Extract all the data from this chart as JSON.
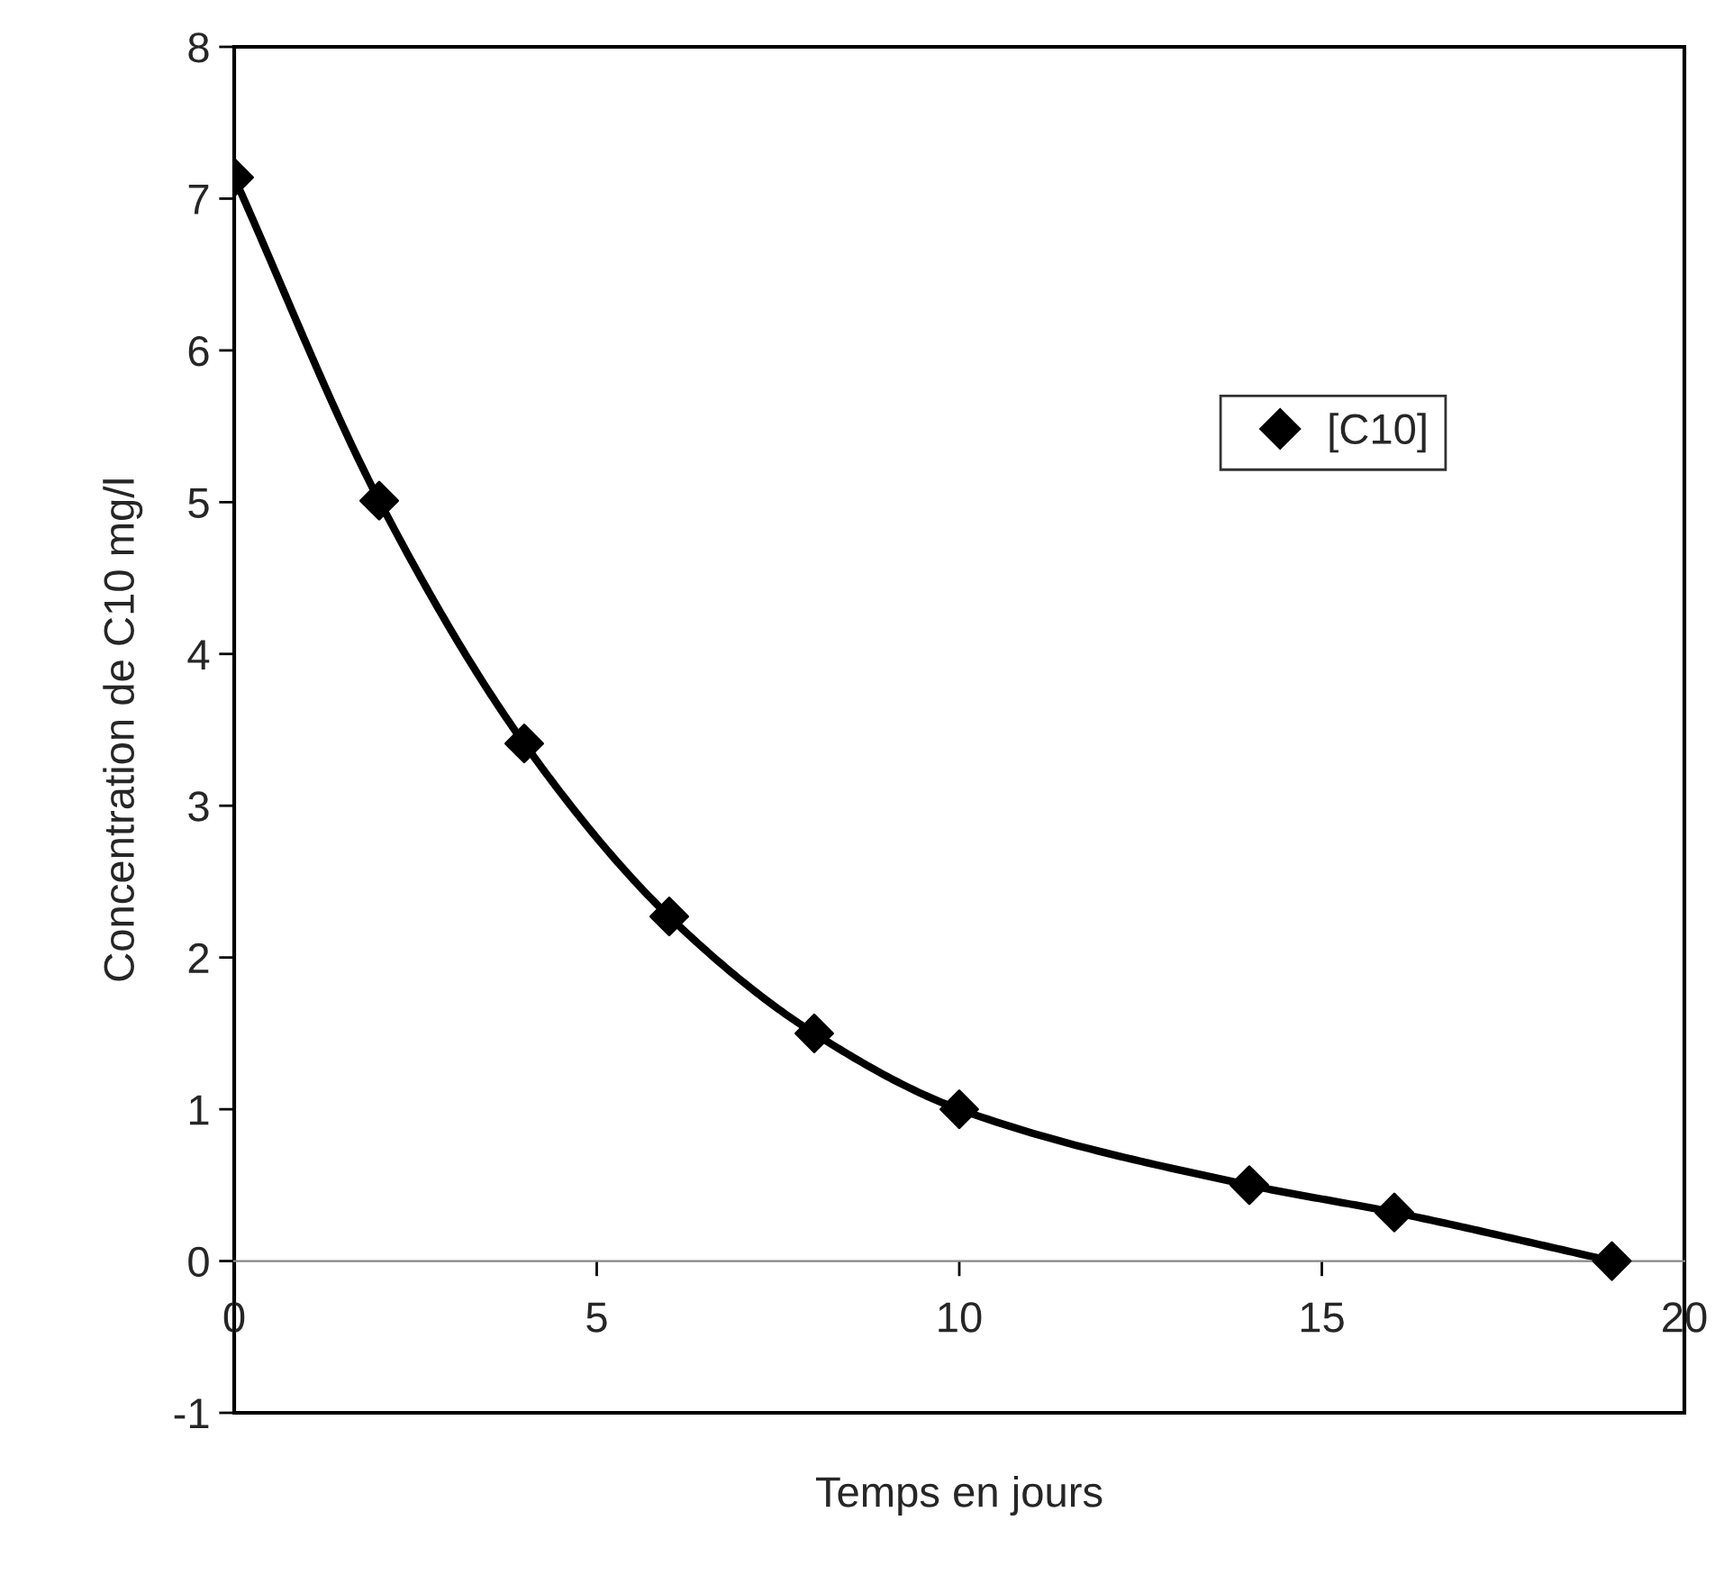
{
  "chart_data": {
    "type": "line",
    "xlabel": "Temps en jours",
    "ylabel": "Concentration de C10 mg/l",
    "x": [
      0,
      2,
      4,
      6,
      8,
      10,
      14,
      16,
      19
    ],
    "series": [
      {
        "name": "[C10]",
        "color": "#000000",
        "values": [
          7.14,
          5.01,
          3.41,
          2.27,
          1.5,
          1.0,
          0.5,
          0.32,
          0.0
        ]
      }
    ],
    "xlim": [
      0,
      20
    ],
    "xticks": [
      0,
      5,
      10,
      15,
      20
    ],
    "ylim": [
      -1,
      8
    ],
    "yticks": [
      -1,
      0,
      1,
      2,
      3,
      4,
      5,
      6,
      7,
      8
    ],
    "marker": "diamond",
    "line_style": "solid",
    "legend": "top right",
    "grid": false
  }
}
